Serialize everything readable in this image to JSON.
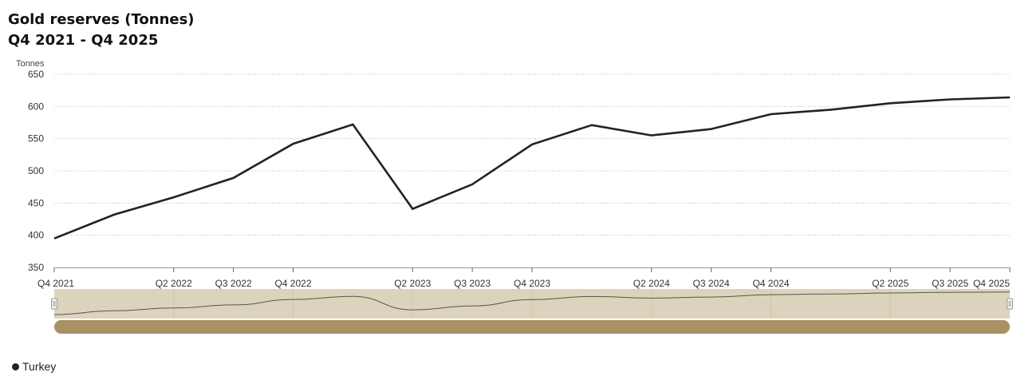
{
  "header": {
    "title": "Gold reserves (Tonnes)",
    "subtitle": "Q4 2021 - Q4 2025"
  },
  "legend": {
    "items": [
      {
        "label": "Turkey",
        "color": "#222222"
      }
    ]
  },
  "colors": {
    "line": "#222222",
    "navigator_bg": "#dcd3bc",
    "navigator_line": "#5a5548",
    "scrollbar": "#a89163",
    "gridline": "#bbbbbb"
  },
  "chart_data": {
    "type": "line",
    "title": "Gold reserves (Tonnes)",
    "subtitle": "Q4 2021 - Q4 2025",
    "ylabel": "Tonnes",
    "xlabel": "",
    "ylim": [
      350,
      650
    ],
    "yticks": [
      350,
      400,
      450,
      500,
      550,
      600,
      650
    ],
    "grid": true,
    "legend_position": "bottom-left",
    "x": [
      "Q4 2021",
      "Q1 2022",
      "Q2 2022",
      "Q3 2022",
      "Q4 2022",
      "Q1 2023",
      "Q2 2023",
      "Q3 2023",
      "Q4 2023",
      "Q1 2024",
      "Q2 2024",
      "Q3 2024",
      "Q4 2024",
      "Q1 2025",
      "Q2 2025",
      "Q3 2025",
      "Q4 2025"
    ],
    "xtick_labels": [
      "Q4 2021",
      "Q2 2022",
      "Q3 2022",
      "Q4 2022",
      "Q2 2023",
      "Q3 2023",
      "Q4 2023",
      "Q2 2024",
      "Q3 2024",
      "Q4 2024",
      "Q2 2025",
      "Q3 2025",
      "Q4 2025"
    ],
    "series": [
      {
        "name": "Turkey",
        "values": [
          395,
          432,
          459,
          489,
          542,
          572,
          441,
          479,
          541,
          571,
          555,
          565,
          588,
          595,
          605,
          611,
          614
        ]
      }
    ]
  }
}
